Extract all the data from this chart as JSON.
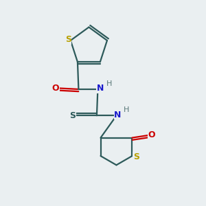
{
  "background_color": "#eaeff1",
  "bond_color": "#2d5a5a",
  "sulfur_color": "#b8a000",
  "oxygen_color": "#cc0000",
  "nitrogen_color": "#1a1acc",
  "hydrogen_color": "#5a7878",
  "figsize": [
    3.0,
    3.0
  ],
  "dpi": 100,
  "xlim": [
    0,
    10
  ],
  "ylim": [
    0,
    10
  ]
}
